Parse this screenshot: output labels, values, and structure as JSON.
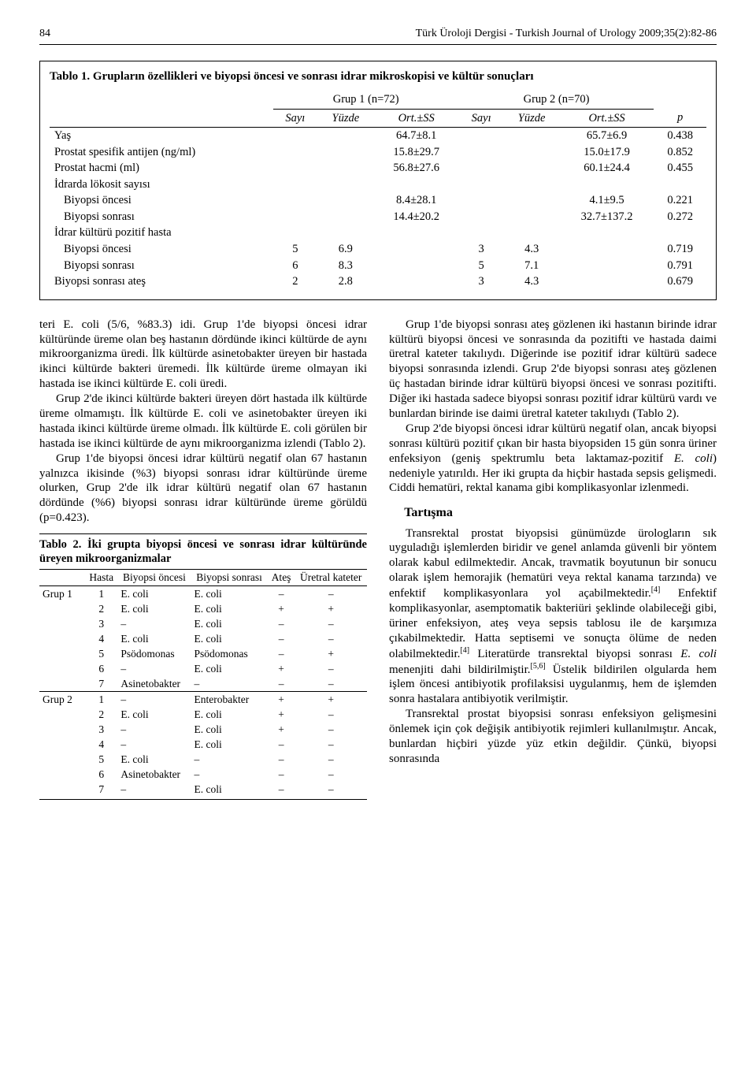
{
  "header": {
    "page_number": "84",
    "journal_line": "Türk Üroloji Dergisi - Turkish Journal of Urology 2009;35(2):82-86"
  },
  "table1": {
    "title": "Tablo 1. Grupların özellikleri ve biyopsi öncesi ve sonrası idrar mikroskopisi ve kültür sonuçları",
    "group_headers": [
      "Grup 1 (n=72)",
      "Grup 2 (n=70)"
    ],
    "sub_headers": [
      "Sayı",
      "Yüzde",
      "Ort.±SS",
      "Sayı",
      "Yüzde",
      "Ort.±SS",
      "p"
    ],
    "rows": [
      {
        "lbl": "Yaş",
        "ind": false,
        "c": [
          "",
          "",
          "64.7±8.1",
          "",
          "",
          "65.7±6.9",
          "0.438"
        ]
      },
      {
        "lbl": "Prostat spesifik antijen (ng/ml)",
        "ind": false,
        "c": [
          "",
          "",
          "15.8±29.7",
          "",
          "",
          "15.0±17.9",
          "0.852"
        ]
      },
      {
        "lbl": "Prostat hacmi (ml)",
        "ind": false,
        "c": [
          "",
          "",
          "56.8±27.6",
          "",
          "",
          "60.1±24.4",
          "0.455"
        ]
      },
      {
        "lbl": "İdrarda lökosit sayısı",
        "ind": false,
        "c": [
          "",
          "",
          "",
          "",
          "",
          "",
          ""
        ]
      },
      {
        "lbl": "Biyopsi öncesi",
        "ind": true,
        "c": [
          "",
          "",
          "8.4±28.1",
          "",
          "",
          "4.1±9.5",
          "0.221"
        ]
      },
      {
        "lbl": "Biyopsi sonrası",
        "ind": true,
        "c": [
          "",
          "",
          "14.4±20.2",
          "",
          "",
          "32.7±137.2",
          "0.272"
        ]
      },
      {
        "lbl": "İdrar kültürü pozitif hasta",
        "ind": false,
        "c": [
          "",
          "",
          "",
          "",
          "",
          "",
          ""
        ]
      },
      {
        "lbl": "Biyopsi öncesi",
        "ind": true,
        "c": [
          "5",
          "6.9",
          "",
          "3",
          "4.3",
          "",
          "0.719"
        ]
      },
      {
        "lbl": "Biyopsi sonrası",
        "ind": true,
        "c": [
          "6",
          "8.3",
          "",
          "5",
          "7.1",
          "",
          "0.791"
        ]
      },
      {
        "lbl": "Biyopsi sonrası ateş",
        "ind": false,
        "c": [
          "2",
          "2.8",
          "",
          "3",
          "4.3",
          "",
          "0.679"
        ]
      }
    ]
  },
  "body": {
    "p1": "teri E. coli (5/6, %83.3) idi. Grup 1'de biyopsi öncesi idrar kültüründe üreme olan beş hastanın dördünde ikinci kültürde de aynı mikroorganizma üredi. İlk kültürde asinetobakter üreyen bir hastada ikinci kültürde bakteri üremedi. İlk kültürde üreme olmayan iki hastada ise ikinci kültürde E. coli üredi.",
    "p2": "Grup 2'de ikinci kültürde bakteri üreyen dört hastada ilk kültürde üreme olmamıştı. İlk kültürde E. coli ve asinetobakter üreyen iki hastada ikinci kültürde üreme olmadı. İlk kültürde E. coli görülen bir hastada ise ikinci kültürde de aynı mikroorganizma izlendi (Tablo 2).",
    "p3": "Grup 1'de biyopsi öncesi idrar kültürü negatif olan 67 hastanın yalnızca ikisinde (%3) biyopsi sonrası idrar kültüründe üreme olurken, Grup 2'de ilk idrar kültürü negatif olan 67 hastanın dördünde (%6) biyopsi sonrası idrar kültüründe üreme görüldü (p=0.423).",
    "p4": "Grup 1'de biyopsi sonrası ateş gözlenen iki hastanın birinde idrar kültürü biyopsi öncesi ve sonrasında da pozitifti ve hastada daimi üretral kateter takılıydı. Diğerinde ise pozitif idrar kültürü sadece biyopsi sonrasında izlendi. Grup 2'de biyopsi sonrası ateş gözlenen üç hastadan birinde idrar kültürü biyopsi öncesi ve sonrası pozitifti. Diğer iki hastada sadece biyopsi sonrası pozitif idrar kültürü vardı ve bunlardan birinde ise daimi üretral kateter takılıydı (Tablo 2).",
    "p5a": "Grup 2'de biyopsi öncesi idrar kültürü negatif olan, ancak biyopsi sonrası kültürü pozitif çıkan bir hasta biyopsiden 15 gün sonra üriner enfeksiyon (geniş spektrumlu beta laktamaz-pozitif ",
    "p5b": ") nedeniyle yatırıldı. Her iki grupta da hiçbir hastada sepsis gelişmedi. Ciddi hematüri, rektal kanama gibi komplikasyonlar izlenmedi.",
    "h_tartisma": "Tartışma",
    "p6a": "Transrektal prostat biyopsisi günümüzde ürologların sık uyguladığı işlemlerden biridir ve genel anlamda güvenli bir yöntem olarak kabul edilmektedir. Ancak, travmatik boyutunun bir sonucu olarak işlem hemorajik (hematüri veya rektal kanama tarzında) ve enfektif komplikasyonlara yol açabilmektedir.",
    "p6b": " Enfektif komplikasyonlar, asemptomatik bakteriüri şeklinde olabileceği gibi, üriner enfeksiyon, ateş veya sepsis tablosu ile de karşımıza çıkabilmektedir. Hatta septisemi ve sonuçta ölüme de neden olabilmektedir.",
    "p6c": " Literatürde transrektal biyopsi sonrası ",
    "p6d": " menenjiti dahi bildirilmiştir.",
    "p6e": " Üstelik bildirilen olgularda hem işlem öncesi antibiyotik profilaksisi uygulanmış, hem de işlemden sonra hastalara antibiyotik verilmiştir.",
    "p7": "Transrektal prostat biyopsisi sonrası enfeksiyon gelişmesini önlemek için çok değişik antibiyotik rejimleri kullanılmıştır. Ancak, bunlardan hiçbiri yüzde yüz etkin değildir. Çünkü, biyopsi sonrasında",
    "ref4": "[4]",
    "ref56": "[5,6]",
    "ecoli": "E. coli"
  },
  "table2": {
    "title": "Tablo 2. İki grupta biyopsi öncesi ve sonrası idrar kültüründe üreyen mikroorganizmalar",
    "headers": [
      "",
      "Hasta",
      "Biyopsi öncesi",
      "Biyopsi sonrası",
      "Ateş",
      "Üretral kateter"
    ],
    "g1_label": "Grup 1",
    "g2_label": "Grup 2",
    "g1": [
      [
        "1",
        "E. coli",
        "E. coli",
        "–",
        "–"
      ],
      [
        "2",
        "E. coli",
        "E. coli",
        "+",
        "+"
      ],
      [
        "3",
        "–",
        "E. coli",
        "–",
        "–"
      ],
      [
        "4",
        "E. coli",
        "E. coli",
        "–",
        "–"
      ],
      [
        "5",
        "Psödomonas",
        "Psödomonas",
        "–",
        "+"
      ],
      [
        "6",
        "–",
        "E. coli",
        "+",
        "–"
      ],
      [
        "7",
        "Asinetobakter",
        "–",
        "–",
        "–"
      ]
    ],
    "g2": [
      [
        "1",
        "–",
        "Enterobakter",
        "+",
        "+"
      ],
      [
        "2",
        "E. coli",
        "E. coli",
        "+",
        "–"
      ],
      [
        "3",
        "–",
        "E. coli",
        "+",
        "–"
      ],
      [
        "4",
        "–",
        "E. coli",
        "–",
        "–"
      ],
      [
        "5",
        "E. coli",
        "–",
        "–",
        "–"
      ],
      [
        "6",
        "Asinetobakter",
        "–",
        "–",
        "–"
      ],
      [
        "7",
        "–",
        "E. coli",
        "–",
        "–"
      ]
    ]
  }
}
